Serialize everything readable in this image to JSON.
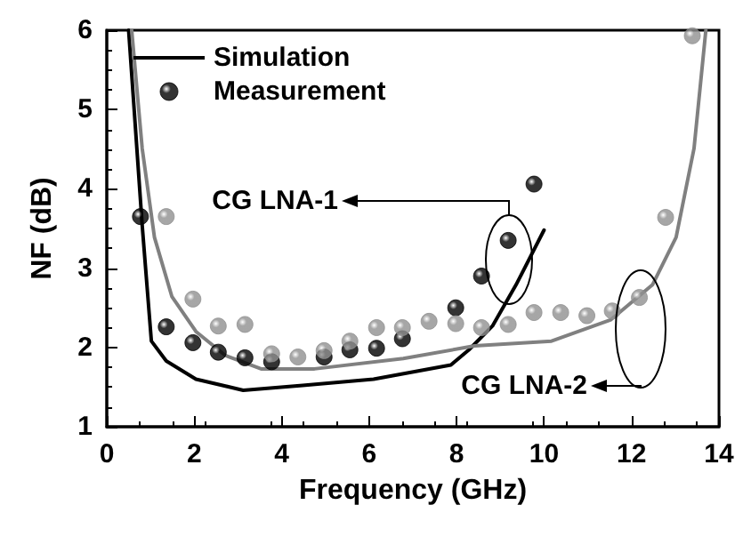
{
  "chart_data": {
    "type": "line",
    "xlabel": "Frequency (GHz)",
    "ylabel": "NF (dB)",
    "xlim": [
      0,
      14
    ],
    "xticks": [
      0,
      2,
      4,
      6,
      8,
      10,
      12,
      14
    ],
    "ylim": [
      1,
      6
    ],
    "yticks": [
      1,
      2,
      3,
      4,
      5,
      6
    ],
    "grid": false,
    "legend": "top left",
    "series": [
      {
        "name": "Simulation",
        "color": "#000000",
        "x": [
          0.5,
          0.81,
          1.02,
          1.36,
          2.04,
          3.12,
          4.48,
          6.1,
          7.87,
          8.28,
          8.82,
          9.36,
          10.0
        ],
        "values": [
          6,
          3.54,
          2.08,
          1.83,
          1.6,
          1.46,
          1.52,
          1.6,
          1.78,
          1.97,
          2.27,
          2.79,
          3.48
        ]
      },
      {
        "color": "#808080",
        "x": [
          0.57,
          0.81,
          1.09,
          1.49,
          2.04,
          2.71,
          3.53,
          4.75,
          6.78,
          8.41,
          10.17,
          11.53,
          12.48,
          13.02,
          13.43,
          13.7
        ],
        "values": [
          6,
          4.51,
          3.39,
          2.64,
          2.2,
          1.9,
          1.73,
          1.73,
          1.86,
          2.02,
          2.08,
          2.35,
          2.79,
          3.39,
          4.51,
          6
        ]
      },
      {
        "name": "Measurement",
        "type": "scatter",
        "marker": "circle",
        "color": "#000000",
        "x": [
          0.77,
          1.36,
          1.97,
          2.55,
          3.16,
          3.77,
          4.97,
          5.56,
          6.17,
          6.76,
          7.98,
          8.57,
          9.18,
          9.77
        ],
        "values": [
          3.65,
          2.26,
          2.06,
          1.94,
          1.87,
          1.82,
          1.88,
          1.97,
          1.99,
          2.11,
          2.5,
          2.9,
          3.35,
          4.06
        ]
      },
      {
        "type": "scatter",
        "marker": "circle",
        "color": "#909090",
        "x": [
          1.36,
          1.97,
          2.55,
          3.16,
          3.77,
          4.37,
          4.97,
          5.56,
          6.17,
          6.76,
          7.37,
          7.98,
          8.57,
          9.18,
          9.77,
          10.38,
          10.98,
          11.56,
          12.18,
          12.78,
          13.39
        ],
        "values": [
          3.65,
          2.61,
          2.27,
          2.29,
          1.92,
          1.88,
          1.96,
          2.08,
          2.25,
          2.25,
          2.33,
          2.3,
          2.25,
          2.29,
          2.44,
          2.44,
          2.4,
          2.46,
          2.63,
          3.64,
          5.93
        ]
      }
    ],
    "annotations": [
      "CG LNA-1",
      "CG LNA-2"
    ]
  }
}
